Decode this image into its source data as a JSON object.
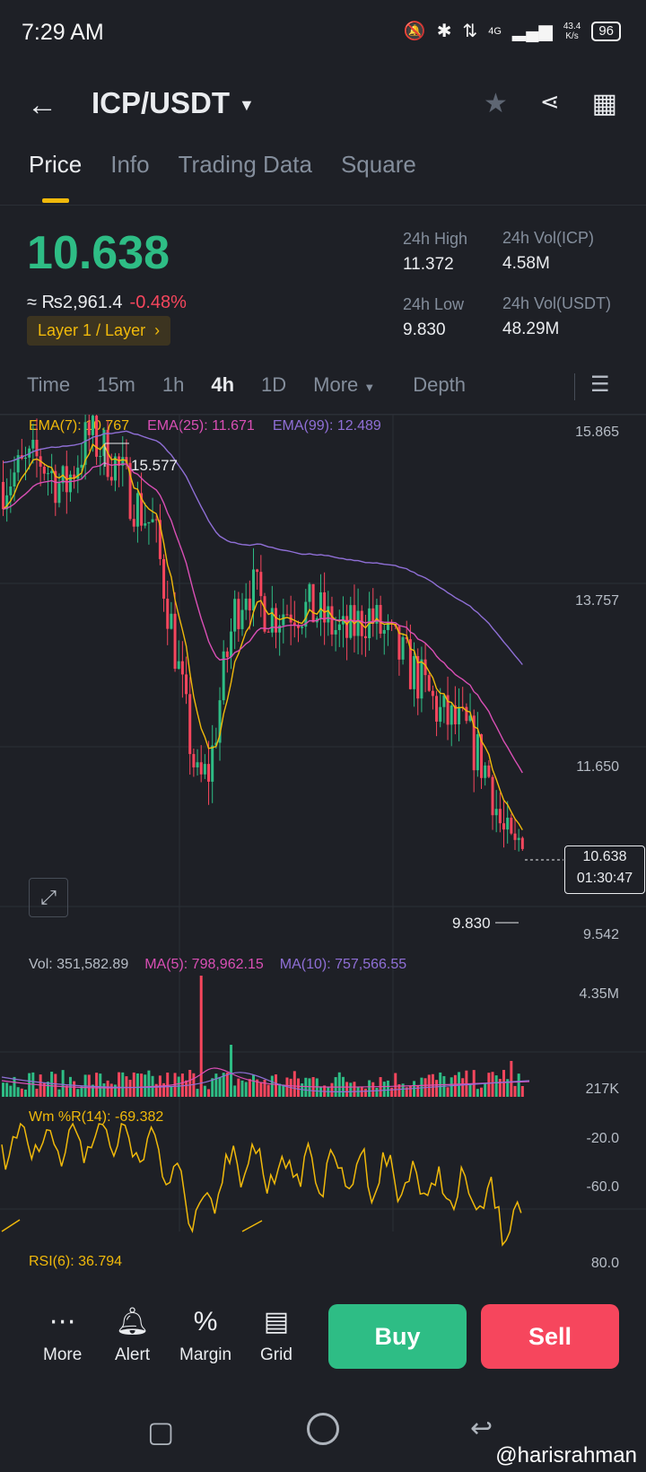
{
  "status": {
    "time": "7:29 AM",
    "net": "4G",
    "speed_top": "43.4",
    "speed_unit": "K/s",
    "battery": "96"
  },
  "header": {
    "pair": "ICP/USDT"
  },
  "tabs": [
    "Price",
    "Info",
    "Trading Data",
    "Square"
  ],
  "ticker": {
    "price": "10.638",
    "fiat": "≈ ₨2,961.4",
    "change": "-0.48%",
    "tag": "Layer 1 / Layer",
    "high_label": "24h High",
    "high": "11.372",
    "low_label": "24h Low",
    "low": "9.830",
    "vol_icp_label": "24h Vol(ICP)",
    "vol_icp": "4.58M",
    "vol_usdt_label": "24h Vol(USDT)",
    "vol_usdt": "48.29M"
  },
  "timeframes": [
    "Time",
    "15m",
    "1h",
    "4h",
    "1D",
    "More",
    "Depth"
  ],
  "ema": {
    "ema7": "EMA(7): 10.767",
    "ema25": "EMA(25): 11.671",
    "ema99": "EMA(99): 12.489"
  },
  "price_axis": [
    "15.865",
    "13.757",
    "11.650",
    "9.542"
  ],
  "markers": {
    "high": "15.577",
    "low": "9.830"
  },
  "current": {
    "price": "10.638",
    "countdown": "01:30:47"
  },
  "volume": {
    "vol": "Vol: 351,582.89",
    "ma5": "MA(5): 798,962.15",
    "ma10": "MA(10): 757,566.55",
    "axis_top": "4.35M",
    "axis_bottom": "217K"
  },
  "wr": {
    "label": "Wm %R(14): -69.382",
    "axis": [
      "-20.0",
      "-60.0"
    ]
  },
  "rsi": {
    "label": "RSI(6): 36.794",
    "axis": "80.0"
  },
  "bottom": {
    "more": "More",
    "alert": "Alert",
    "margin": "Margin",
    "grid": "Grid",
    "buy": "Buy",
    "sell": "Sell"
  },
  "watermark": "@harisrahman",
  "colors": {
    "up": "#2ebd85",
    "down": "#f6465d",
    "ema7": "#f0b90b",
    "ema25": "#d94fb5",
    "ema99": "#8f6fd6",
    "accent": "#f0b90b"
  }
}
